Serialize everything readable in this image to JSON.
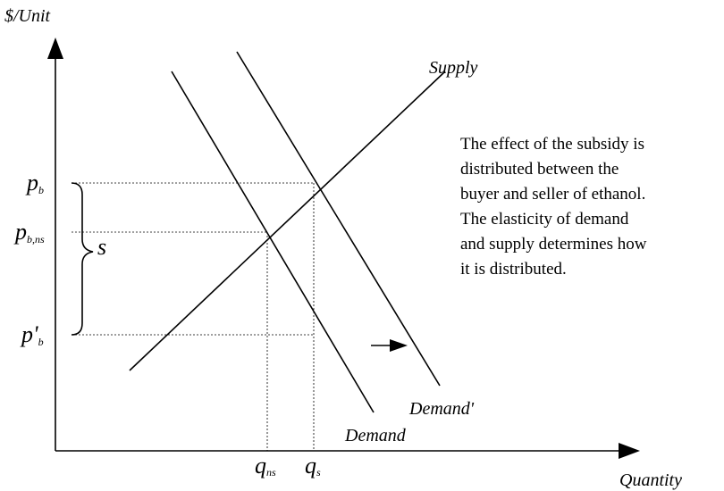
{
  "axes": {
    "y_label": "$/Unit",
    "x_label": "Quantity"
  },
  "curves": {
    "supply": "Supply",
    "demand": "Demand",
    "demand_shifted": "Demand'"
  },
  "prices": [
    {
      "main": "p",
      "sub": "b"
    },
    {
      "main": "p",
      "sub": "b,ns"
    },
    {
      "main": "p'",
      "sub": "b"
    }
  ],
  "quantities": [
    {
      "main": "q",
      "sub": "ns"
    },
    {
      "main": "q",
      "sub": "s"
    }
  ],
  "brace_label": "s",
  "note": [
    "The effect of the subsidy is",
    "distributed between the",
    "buyer and seller of ethanol.",
    "The elasticity of demand",
    "and supply determines how",
    "it is distributed."
  ]
}
